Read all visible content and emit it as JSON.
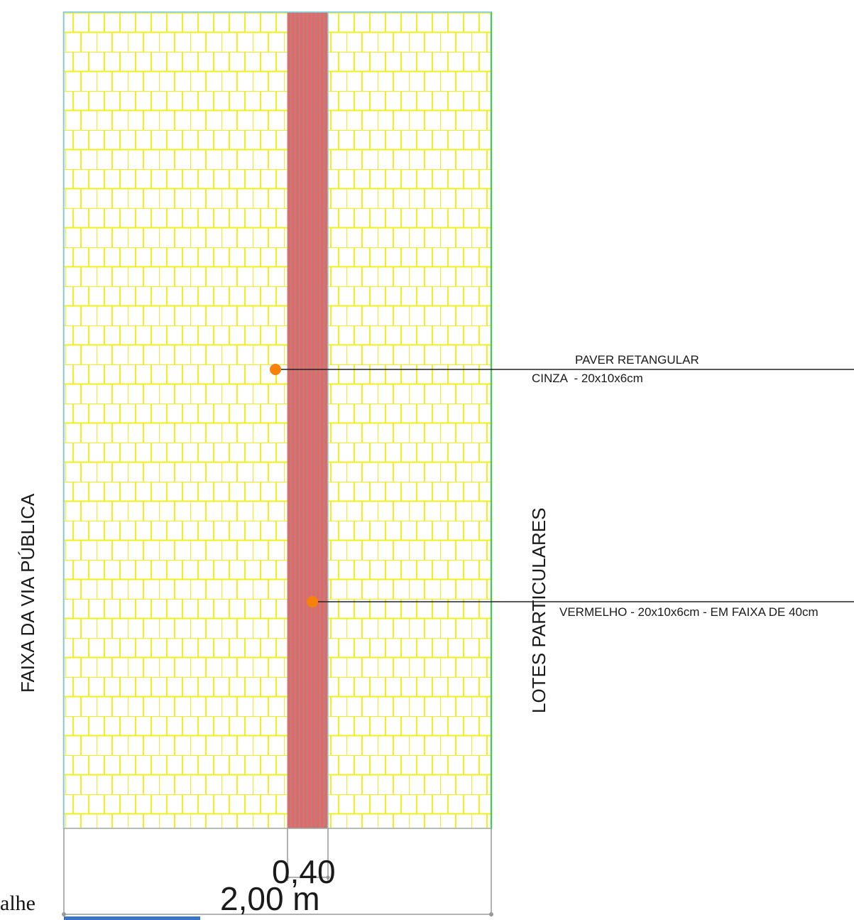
{
  "labels": {
    "left_zone": "FAIXA DA VIA PÚBLICA",
    "right_zone": "LOTES PARTICULARES",
    "callout_gray_line1": "PAVER RETANGULAR",
    "callout_gray_line2": "CINZA  - 20x10x6cm",
    "callout_red": "VERMELHO - 20x10x6cm - EM FAIXA DE 40cm",
    "dim_strip": "0,40",
    "dim_total": "2,00 m",
    "footer_fragment": "alhe"
  },
  "colors": {
    "paver_outline": "#f2ef1e",
    "red_strip": "#dd6b67",
    "red_strip_lines": "#a78c9a",
    "callout_dot": "#f7820a",
    "callout_line": "#222222",
    "dim_line": "#999999",
    "border_cyan": "#7fd6e0",
    "border_green": "#3bd04a",
    "bottom_bar": "#3a74c2"
  }
}
